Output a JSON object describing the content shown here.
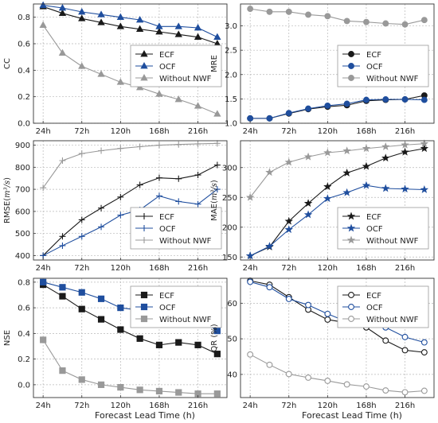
{
  "x_axis_title": "Forecast Lead Time (h)",
  "chart_data": [
    {
      "type": "line",
      "panel": "top-left",
      "ylabel": "CC",
      "ylim": [
        0.0,
        0.9
      ],
      "yticks": [
        0.0,
        0.2,
        0.4,
        0.6,
        0.8
      ],
      "ytick_labels": [
        "0.0",
        "0.2",
        "0.4",
        "0.6",
        "0.8"
      ],
      "x": [
        24,
        48,
        72,
        96,
        120,
        144,
        168,
        192,
        216,
        240
      ],
      "xlim": [
        12,
        252
      ],
      "xticks": [
        24,
        72,
        120,
        168,
        216
      ],
      "xtick_labels": [
        "24h",
        "72h",
        "120h",
        "168h",
        "216h"
      ],
      "legend_position": "center-right",
      "grid": true,
      "series": [
        {
          "name": "ECF",
          "color": "#1a1a1a",
          "marker": "triangle",
          "fill": "#1a1a1a",
          "values": [
            0.88,
            0.83,
            0.79,
            0.76,
            0.73,
            0.71,
            0.69,
            0.67,
            0.65,
            0.6
          ]
        },
        {
          "name": "OCF",
          "color": "#1f4e9e",
          "marker": "triangle",
          "fill": "#1f4e9e",
          "values": [
            0.89,
            0.87,
            0.84,
            0.82,
            0.8,
            0.78,
            0.73,
            0.73,
            0.72,
            0.65
          ]
        },
        {
          "name": "Without NWF",
          "color": "#999999",
          "marker": "triangle",
          "fill": "#999999",
          "values": [
            0.74,
            0.53,
            0.43,
            0.37,
            0.31,
            0.27,
            0.22,
            0.18,
            0.13,
            0.07
          ]
        }
      ]
    },
    {
      "type": "line",
      "panel": "top-right",
      "ylabel": "MRE",
      "ylim": [
        1.0,
        3.45
      ],
      "yticks": [
        1.0,
        1.5,
        2.0,
        2.5,
        3.0
      ],
      "ytick_labels": [
        "1.0",
        "1.5",
        "2.0",
        "2.5",
        "3.0"
      ],
      "x": [
        24,
        48,
        72,
        96,
        120,
        144,
        168,
        192,
        216,
        240
      ],
      "xlim": [
        12,
        252
      ],
      "xticks": [
        24,
        72,
        120,
        168,
        216
      ],
      "xtick_labels": [
        "24h",
        "72h",
        "120h",
        "168h",
        "216h"
      ],
      "legend_position": "center-right",
      "grid": true,
      "series": [
        {
          "name": "ECF",
          "color": "#1a1a1a",
          "marker": "circle",
          "fill": "#1a1a1a",
          "values": [
            1.1,
            1.1,
            1.2,
            1.29,
            1.34,
            1.37,
            1.46,
            1.48,
            1.49,
            1.57
          ]
        },
        {
          "name": "OCF",
          "color": "#1f4e9e",
          "marker": "circle",
          "fill": "#1f4e9e",
          "values": [
            1.1,
            1.1,
            1.21,
            1.3,
            1.36,
            1.4,
            1.48,
            1.49,
            1.49,
            1.48
          ]
        },
        {
          "name": "Without NWF",
          "color": "#999999",
          "marker": "circle",
          "fill": "#999999",
          "values": [
            3.35,
            3.29,
            3.29,
            3.23,
            3.2,
            3.1,
            3.08,
            3.05,
            3.03,
            3.12
          ]
        }
      ]
    },
    {
      "type": "line",
      "panel": "middle-left",
      "ylabel": "RMSE(m³/s)",
      "ylim": [
        380,
        920
      ],
      "yticks": [
        400,
        500,
        600,
        700,
        800,
        900
      ],
      "ytick_labels": [
        "400",
        "500",
        "600",
        "700",
        "800",
        "900"
      ],
      "x": [
        24,
        48,
        72,
        96,
        120,
        144,
        168,
        192,
        216,
        240
      ],
      "xlim": [
        12,
        252
      ],
      "xticks": [
        24,
        72,
        120,
        168,
        216
      ],
      "xtick_labels": [
        "24h",
        "72h",
        "120h",
        "168h",
        "216h"
      ],
      "legend_position": "bottom-right",
      "grid": true,
      "series": [
        {
          "name": "ECF",
          "color": "#1a1a1a",
          "marker": "plus",
          "fill": "#1a1a1a",
          "values": [
            400,
            487,
            562,
            615,
            665,
            720,
            752,
            748,
            765,
            810
          ]
        },
        {
          "name": "OCF",
          "color": "#1f4e9e",
          "marker": "plus",
          "fill": "#1f4e9e",
          "values": [
            400,
            445,
            487,
            530,
            583,
            607,
            670,
            645,
            633,
            700
          ]
        },
        {
          "name": "Without NWF",
          "color": "#999999",
          "marker": "plus",
          "fill": "#999999",
          "values": [
            707,
            830,
            862,
            875,
            885,
            893,
            900,
            903,
            906,
            908
          ]
        }
      ]
    },
    {
      "type": "line",
      "panel": "middle-right",
      "ylabel": "MAE(m³/s)",
      "ylim": [
        145,
        345
      ],
      "yticks": [
        150,
        200,
        250,
        300
      ],
      "ytick_labels": [
        "150",
        "200",
        "250",
        "300"
      ],
      "x": [
        24,
        48,
        72,
        96,
        120,
        144,
        168,
        192,
        216,
        240
      ],
      "xlim": [
        12,
        252
      ],
      "xticks": [
        24,
        72,
        120,
        168,
        216
      ],
      "xtick_labels": [
        "24h",
        "72h",
        "120h",
        "168h",
        "216h"
      ],
      "legend_position": "bottom-right",
      "grid": true,
      "series": [
        {
          "name": "ECF",
          "color": "#1a1a1a",
          "marker": "star",
          "fill": "#1a1a1a",
          "values": [
            152,
            167,
            210,
            240,
            268,
            291,
            302,
            316,
            326,
            332
          ]
        },
        {
          "name": "OCF",
          "color": "#1f4e9e",
          "marker": "star",
          "fill": "#1f4e9e",
          "values": [
            152,
            168,
            196,
            221,
            248,
            258,
            270,
            265,
            264,
            263
          ]
        },
        {
          "name": "Without NWF",
          "color": "#999999",
          "marker": "star",
          "fill": "#999999",
          "values": [
            250,
            292,
            309,
            318,
            325,
            328,
            332,
            335,
            338,
            340
          ]
        }
      ]
    },
    {
      "type": "line",
      "panel": "bottom-left",
      "ylabel": "NSE",
      "ylim": [
        -0.1,
        0.83
      ],
      "yticks": [
        0.0,
        0.2,
        0.4,
        0.6,
        0.8
      ],
      "ytick_labels": [
        "0.0",
        "0.2",
        "0.4",
        "0.6",
        "0.8"
      ],
      "x": [
        24,
        48,
        72,
        96,
        120,
        144,
        168,
        192,
        216,
        240
      ],
      "xlim": [
        12,
        252
      ],
      "xticks": [
        24,
        72,
        120,
        168,
        216
      ],
      "xtick_labels": [
        "24h",
        "72h",
        "120h",
        "168h",
        "216h"
      ],
      "legend_position": "top-right",
      "grid": true,
      "series": [
        {
          "name": "ECF",
          "color": "#1a1a1a",
          "marker": "square",
          "fill": "#1a1a1a",
          "values": [
            0.78,
            0.69,
            0.59,
            0.51,
            0.43,
            0.36,
            0.31,
            0.33,
            0.31,
            0.24
          ]
        },
        {
          "name": "OCF",
          "color": "#1f4e9e",
          "marker": "square",
          "fill": "#1f4e9e",
          "values": [
            0.8,
            0.76,
            0.72,
            0.67,
            0.6,
            0.58,
            0.49,
            0.52,
            0.52,
            0.42
          ]
        },
        {
          "name": "Without NWF",
          "color": "#999999",
          "marker": "square",
          "fill": "#999999",
          "values": [
            0.35,
            0.11,
            0.04,
            0.0,
            -0.02,
            -0.04,
            -0.05,
            -0.06,
            -0.07,
            -0.07
          ]
        }
      ]
    },
    {
      "type": "line",
      "panel": "bottom-right",
      "ylabel": "QR (%)",
      "ylim": [
        33.5,
        67
      ],
      "yticks": [
        40,
        50,
        60
      ],
      "ytick_labels": [
        "40",
        "50",
        "60"
      ],
      "x": [
        24,
        48,
        72,
        96,
        120,
        144,
        168,
        192,
        216,
        240
      ],
      "xlim": [
        12,
        252
      ],
      "xticks": [
        24,
        72,
        120,
        168,
        216
      ],
      "xtick_labels": [
        "24h",
        "72h",
        "120h",
        "168h",
        "216h"
      ],
      "legend_position": "top-right",
      "grid": true,
      "series": [
        {
          "name": "ECF",
          "color": "#1a1a1a",
          "marker": "circle",
          "fill": "#ffffff",
          "values": [
            66.3,
            65.2,
            61.7,
            58.2,
            55.4,
            54.5,
            53.2,
            49.5,
            46.8,
            46.2
          ]
        },
        {
          "name": "OCF",
          "color": "#1f4e9e",
          "marker": "circle",
          "fill": "#ffffff",
          "values": [
            66.0,
            64.5,
            61.2,
            59.5,
            57.0,
            54.8,
            54.7,
            53.2,
            50.5,
            49.0
          ]
        },
        {
          "name": "Without NWF",
          "color": "#999999",
          "marker": "circle",
          "fill": "#ffffff",
          "values": [
            45.6,
            42.7,
            40.1,
            39.1,
            38.2,
            37.2,
            36.6,
            35.5,
            35.0,
            35.4
          ]
        }
      ]
    }
  ]
}
